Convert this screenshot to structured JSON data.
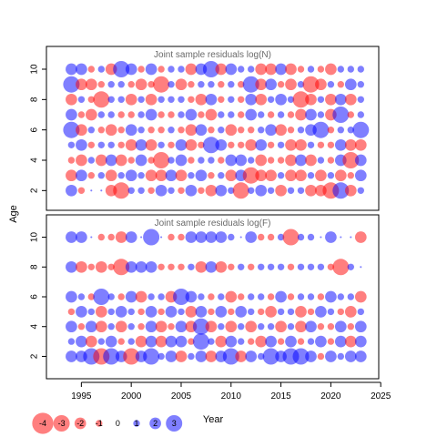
{
  "chart_data": {
    "type": "scatter",
    "ylabel": "Age",
    "xlabel": "Year",
    "x_ticks": [
      1995,
      2000,
      2005,
      2010,
      2015,
      2020,
      2025
    ],
    "xlim": [
      1991.5,
      2024.8
    ],
    "colors": {
      "positive": "#0000FF",
      "negative": "#FF0000",
      "bubble_alpha": 0.5
    },
    "panels": [
      {
        "title": "Joint sample residuals log(N)",
        "y_ticks": [
          2,
          4,
          6,
          8,
          10
        ],
        "ylim": [
          0.7,
          11.5
        ],
        "ages": [
          2,
          3,
          4,
          5,
          6,
          7,
          8,
          9,
          10
        ],
        "years": [
          1994,
          1995,
          1996,
          1997,
          1998,
          1999,
          2000,
          2001,
          2002,
          2003,
          2004,
          2005,
          2006,
          2007,
          2008,
          2009,
          2010,
          2011,
          2012,
          2013,
          2014,
          2015,
          2016,
          2017,
          2018,
          2019,
          2020,
          2021,
          2022,
          2023
        ],
        "residuals": [
          [
            2,
            -1,
            0,
            0,
            -2,
            -3,
            1,
            1,
            -1,
            2,
            1,
            -1,
            2,
            -1,
            -2,
            2,
            1,
            -3,
            1,
            2,
            1,
            -2,
            1,
            1,
            -2,
            -2,
            -3,
            3,
            -2,
            1
          ],
          [
            -2,
            2,
            -1,
            1,
            -2,
            1,
            2,
            1,
            -2,
            -2,
            2,
            -2,
            1,
            2,
            -1,
            1,
            -2,
            2,
            -3,
            -2,
            -2,
            1,
            -2,
            -2,
            1,
            -2,
            1,
            -2,
            -1,
            2
          ],
          [
            -1,
            -2,
            1,
            -2,
            2,
            -2,
            -1,
            2,
            -1,
            -3,
            1,
            2,
            -1,
            1,
            1,
            -1,
            2,
            2,
            1,
            -2,
            -1,
            -1,
            -2,
            2,
            -2,
            1,
            -1,
            2,
            -3,
            2
          ],
          [
            1,
            2,
            -1,
            1,
            1,
            -1,
            -2,
            2,
            -2,
            1,
            -1,
            2,
            -2,
            -1,
            3,
            2,
            -1,
            -1,
            -2,
            2,
            -1,
            1,
            -2,
            -2,
            1,
            -1,
            -1,
            2,
            -2,
            -2
          ],
          [
            3,
            -2,
            1,
            -1,
            -2,
            -1,
            2,
            1,
            -1,
            -1,
            1,
            -1,
            -2,
            2,
            -1,
            1,
            -2,
            -1,
            -1,
            1,
            2,
            -2,
            -1,
            1,
            2,
            3,
            -1,
            1,
            1,
            3
          ],
          [
            2,
            -1,
            -2,
            1,
            1,
            -1,
            -1,
            1,
            2,
            -1,
            -1,
            1,
            2,
            -1,
            -2,
            1,
            1,
            -1,
            2,
            1,
            -1,
            1,
            -1,
            -2,
            2,
            1,
            -2,
            3,
            -1,
            1
          ],
          [
            -2,
            1,
            -1,
            -3,
            1,
            1,
            -2,
            1,
            -2,
            1,
            1,
            1,
            -1,
            -2,
            2,
            -1,
            1,
            -1,
            2,
            -2,
            1,
            2,
            1,
            -3,
            -2,
            1,
            -2,
            2,
            -2,
            1
          ],
          [
            3,
            -2,
            -2,
            -1,
            1,
            1,
            -1,
            -2,
            -1,
            -3,
            1,
            -2,
            -1,
            1,
            1,
            -1,
            1,
            -1,
            3,
            -2,
            2,
            -1,
            -2,
            1,
            -3,
            -2,
            1,
            -1,
            2,
            1
          ],
          [
            2,
            2,
            -1,
            1,
            -2,
            3,
            2,
            -1,
            2,
            -1,
            1,
            1,
            -2,
            2,
            3,
            -2,
            2,
            1,
            1,
            -2,
            -2,
            2,
            -2,
            -1,
            1,
            -1,
            -2,
            1,
            1,
            1
          ]
        ]
      },
      {
        "title": "Joint sample residuals log(F)",
        "y_ticks": [
          2,
          4,
          6,
          8,
          10
        ],
        "ylim": [
          0.5,
          11.5
        ],
        "ages": [
          2,
          3,
          4,
          5,
          6,
          7,
          8,
          10
        ],
        "years": [
          1994,
          1995,
          1996,
          1997,
          1998,
          1999,
          2000,
          2001,
          2002,
          2003,
          2004,
          2005,
          2006,
          2007,
          2008,
          2009,
          2010,
          2011,
          2012,
          2013,
          2014,
          2015,
          2016,
          2017,
          2018,
          2019,
          2020,
          2021,
          2022,
          2023
        ],
        "residuals": [
          [
            2,
            2,
            3,
            -3,
            3,
            2,
            -3,
            2,
            3,
            1,
            2,
            -2,
            1,
            2,
            -2,
            2,
            3,
            -2,
            2,
            1,
            3,
            2,
            3,
            3,
            2,
            -1,
            2,
            1,
            2,
            2
          ],
          [
            1,
            2,
            -2,
            1,
            2,
            -1,
            1,
            -2,
            2,
            -2,
            2,
            2,
            -1,
            3,
            1,
            -2,
            2,
            1,
            -1,
            -2,
            2,
            -1,
            2,
            -1,
            1,
            2,
            -1,
            2,
            -2,
            2
          ],
          [
            2,
            -1,
            2,
            -2,
            1,
            -2,
            1,
            -1,
            2,
            -2,
            -1,
            2,
            -2,
            3,
            -2,
            1,
            -2,
            1,
            -2,
            1,
            1,
            -2,
            1,
            -2,
            2,
            -1,
            -1,
            2,
            -1,
            2
          ],
          [
            -1,
            2,
            1,
            -2,
            1,
            2,
            1,
            -1,
            2,
            -1,
            2,
            1,
            -2,
            2,
            -1,
            2,
            -1,
            2,
            1,
            -1,
            -2,
            1,
            1,
            -2,
            -1,
            2,
            1,
            -1,
            -2,
            1
          ],
          [
            2,
            1,
            -1,
            3,
            1,
            -1,
            2,
            -2,
            1,
            1,
            -2,
            3,
            2,
            1,
            -1,
            1,
            -2,
            -1,
            1,
            1,
            -1,
            2,
            -1,
            1,
            1,
            -1,
            2,
            1,
            1,
            -2
          ],
          [],
          [
            2,
            -2,
            -1,
            -2,
            -1,
            -3,
            2,
            2,
            2,
            -1,
            -1,
            -1,
            1,
            -2,
            2,
            -2,
            -1,
            1,
            -1,
            1,
            1,
            1,
            -1,
            1,
            1,
            1,
            -1,
            -3,
            1,
            0
          ],
          [
            2,
            2,
            0,
            -1,
            -1,
            -2,
            2,
            0,
            3,
            0,
            -1,
            -1,
            2,
            2,
            2,
            2,
            1,
            0,
            2,
            -1,
            -1,
            1,
            -3,
            1,
            1,
            0,
            2,
            0,
            0,
            -2
          ]
        ]
      }
    ],
    "legend": {
      "position": "bottom-left",
      "items": [
        {
          "label": "-4",
          "value": -4
        },
        {
          "label": "-3",
          "value": -3
        },
        {
          "label": "-2",
          "value": -2
        },
        {
          "label": "-1",
          "value": -1
        },
        {
          "label": "0",
          "value": 0
        },
        {
          "label": "1",
          "value": 1
        },
        {
          "label": "2",
          "value": 2
        },
        {
          "label": "3",
          "value": 3
        }
      ]
    }
  }
}
